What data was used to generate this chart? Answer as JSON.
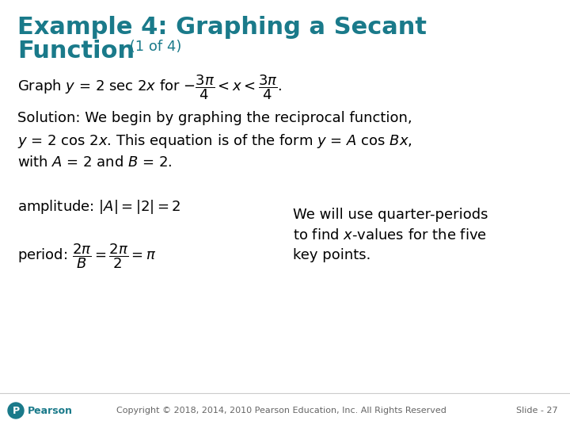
{
  "bg_color": "#ffffff",
  "title_line1": "Example 4: Graphing a Secant",
  "title_line2": "Function",
  "title_suffix": " (1 of 4)",
  "title_color": "#1a7a8a",
  "title_fontsize": 22,
  "title_suffix_fontsize": 13,
  "body_fontsize": 13,
  "body_color": "#000000",
  "footer_color": "#666666",
  "footer_fontsize": 8,
  "pearson_color": "#1a7a8a",
  "slide_label": "Slide - 27",
  "copyright_text": "Copyright © 2018, 2014, 2010 Pearson Education, Inc. All Rights Reserved"
}
